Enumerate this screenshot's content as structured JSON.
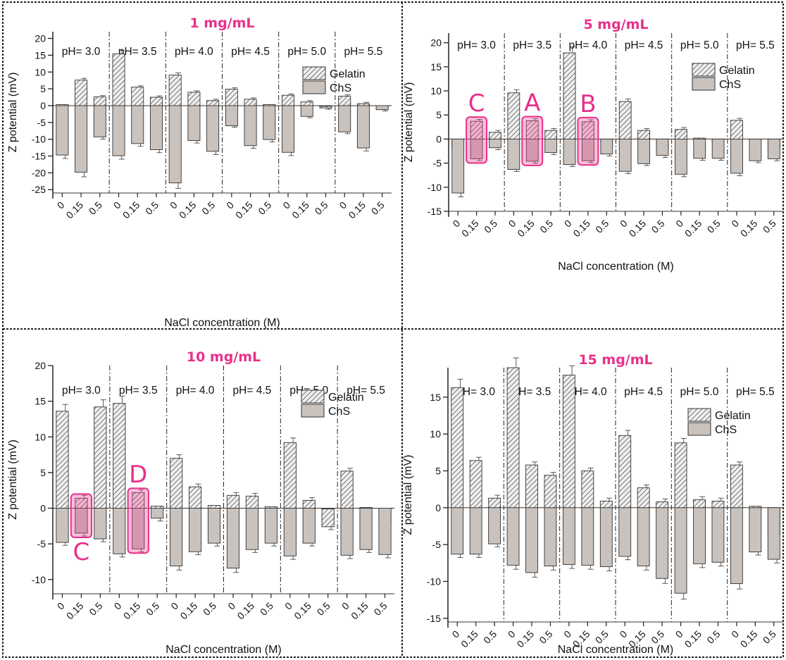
{
  "legend": {
    "gelatin": "Gelatin",
    "chs": "ChS"
  },
  "chart_data": [
    {
      "type": "bar",
      "title": "1 mg/mL",
      "xlabel": "NaCl concentration (M)",
      "ylabel": "Z potential (mV)",
      "ylim": [
        -26,
        22
      ],
      "yticks": [
        -25,
        -20,
        -15,
        -10,
        -5,
        0,
        5,
        10,
        15,
        20
      ],
      "groups": [
        "pH= 3.0",
        "pH= 3.5",
        "pH= 4.0",
        "pH= 4.5",
        "pH= 5.0",
        "pH= 5.5"
      ],
      "categories": [
        "0",
        "0.15",
        "0.5"
      ],
      "series": [
        {
          "name": "Gelatin",
          "values": [
            [
              0.3,
              7.6,
              2.6
            ],
            [
              15.4,
              5.5,
              2.5
            ],
            [
              9.1,
              4.0,
              1.5
            ],
            [
              4.9,
              1.9,
              0.3
            ],
            [
              3.1,
              1.1,
              -0.7
            ],
            [
              2.8,
              0.6,
              -0.5
            ]
          ]
        },
        {
          "name": "ChS",
          "values": [
            [
              -14.7,
              -19.8,
              -9.3
            ],
            [
              -14.9,
              -11.3,
              -13.1
            ],
            [
              -23.0,
              -10.4,
              -13.6
            ],
            [
              -6.0,
              -11.9,
              -10.1
            ],
            [
              -13.9,
              -3.2,
              0.0
            ],
            [
              -7.8,
              -12.6,
              -1.2
            ]
          ]
        }
      ],
      "annotations": []
    },
    {
      "type": "bar",
      "title": "5 mg/mL",
      "xlabel": "NaCl concentration (M)",
      "ylabel": "Z potential (mV)",
      "ylim": [
        -15,
        22
      ],
      "yticks": [
        -15,
        -10,
        -5,
        0,
        5,
        10,
        15,
        20
      ],
      "groups": [
        "pH= 3.0",
        "pH= 3.5",
        "pH= 4.0",
        "pH= 4.5",
        "pH= 5.0",
        "pH= 5.5"
      ],
      "categories": [
        "0",
        "0.15",
        "0.5"
      ],
      "series": [
        {
          "name": "Gelatin",
          "values": [
            [
              -2.1,
              3.7,
              1.4
            ],
            [
              9.6,
              3.8,
              1.8
            ],
            [
              17.9,
              3.6,
              -0.6
            ],
            [
              7.8,
              1.8,
              -2.1
            ],
            [
              2.0,
              0.2,
              -0.6
            ],
            [
              3.9,
              -0.2,
              -2.0
            ]
          ]
        },
        {
          "name": "ChS",
          "values": [
            [
              -11.2,
              -4.1,
              -1.8
            ],
            [
              -6.3,
              -4.6,
              -2.8
            ],
            [
              -5.3,
              -4.5,
              -3.1
            ],
            [
              -6.7,
              -5.1,
              -3.4
            ],
            [
              -7.3,
              -4.0,
              -4.0
            ],
            [
              -7.1,
              -4.5,
              -4.1
            ]
          ]
        }
      ],
      "annotations": [
        {
          "label": "C",
          "group": 0,
          "category": 1
        },
        {
          "label": "A",
          "group": 1,
          "category": 1
        },
        {
          "label": "B",
          "group": 2,
          "category": 1
        }
      ]
    },
    {
      "type": "bar",
      "title": "10 mg/mL",
      "xlabel": "NaCl concentration (M)",
      "ylabel": "Z potential (mV)",
      "ylim": [
        -12,
        20
      ],
      "yticks": [
        -10,
        -5,
        0,
        5,
        10,
        15,
        20
      ],
      "groups": [
        "pH= 3.0",
        "pH= 3.5",
        "pH= 4.0",
        "pH= 4.5",
        "pH= 5.0",
        "pH= 5.5"
      ],
      "categories": [
        "0",
        "0.15",
        "0.5"
      ],
      "series": [
        {
          "name": "Gelatin",
          "values": [
            [
              13.6,
              1.4,
              14.2
            ],
            [
              14.7,
              2.2,
              0.3
            ],
            [
              7.0,
              3.0,
              0.4
            ],
            [
              1.8,
              1.7,
              0.2
            ],
            [
              9.2,
              1.1,
              -2.6
            ],
            [
              5.2,
              0.1,
              -2.1
            ]
          ]
        },
        {
          "name": "ChS",
          "values": [
            [
              -4.8,
              -3.5,
              -4.3
            ],
            [
              -6.4,
              -5.7,
              -1.4
            ],
            [
              -8.1,
              -6.1,
              -4.9
            ],
            [
              -8.4,
              -5.8,
              -4.9
            ],
            [
              -6.7,
              -4.9,
              0.0
            ],
            [
              -6.6,
              -5.8,
              -6.5
            ]
          ]
        }
      ],
      "annotations": [
        {
          "label": "C",
          "group": 0,
          "category": 1
        },
        {
          "label": "D",
          "group": 1,
          "category": 1
        }
      ]
    },
    {
      "type": "bar",
      "title": "15 mg/mL",
      "xlabel": "NaCl concentration (M)",
      "ylabel": "Z potential (mV)",
      "ylim": [
        -15.5,
        19
      ],
      "yticks": [
        -15,
        -10,
        -5,
        0,
        5,
        10,
        15
      ],
      "groups": [
        "pH= 3.0",
        "pH= 3.5",
        "pH= 4.0",
        "pH= 4.5",
        "pH= 5.0",
        "pH= 5.5"
      ],
      "categories": [
        "0",
        "0.15",
        "0.5"
      ],
      "series": [
        {
          "name": "Gelatin",
          "values": [
            [
              16.3,
              6.4,
              1.3
            ],
            [
              19.0,
              5.8,
              4.4
            ],
            [
              18.0,
              5.0,
              0.9
            ],
            [
              9.8,
              2.7,
              0.8
            ],
            [
              8.8,
              1.1,
              0.9
            ],
            [
              5.8,
              0.2,
              -3.7
            ]
          ]
        },
        {
          "name": "ChS",
          "values": [
            [
              -6.3,
              -6.3,
              -4.9
            ],
            [
              -7.8,
              -8.8,
              -7.9
            ],
            [
              -7.7,
              -7.8,
              -8.0
            ],
            [
              -6.6,
              -7.9,
              -9.6
            ],
            [
              -11.6,
              -7.6,
              -7.4
            ],
            [
              -10.3,
              -6.0,
              -7.0
            ]
          ]
        }
      ],
      "annotations": []
    }
  ]
}
